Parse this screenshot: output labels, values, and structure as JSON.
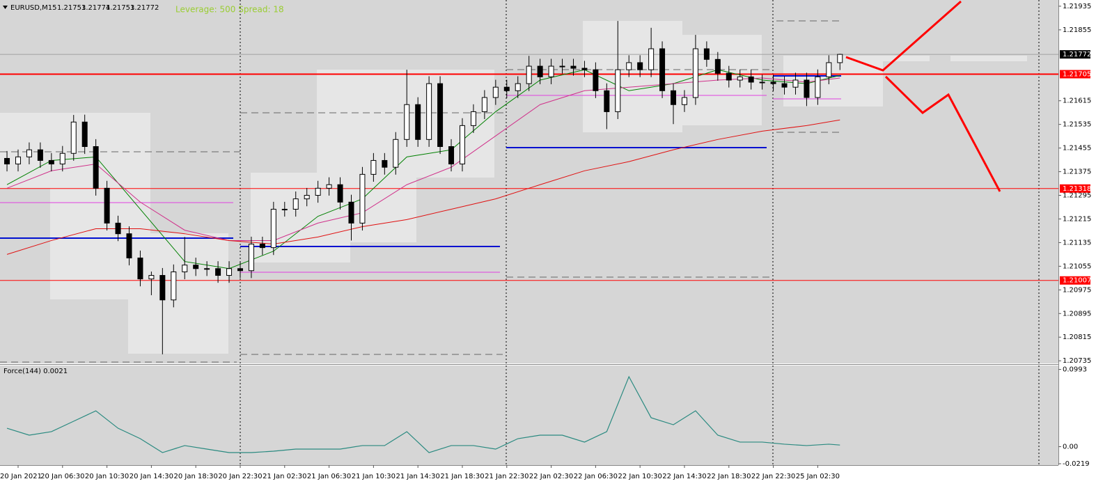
{
  "chart_data": [
    {
      "type": "candlestick",
      "title": "EURUSD,M15",
      "ohlc_header": [
        1.21753,
        1.21774,
        1.21753,
        1.21772
      ],
      "annotation": "Leverage: 500 Spread: 18",
      "xlim": [
        -0.63,
        94.67
      ],
      "ylim": [
        1.20726,
        1.21956
      ],
      "yticks": [
        1.21935,
        1.21855,
        1.21615,
        1.21535,
        1.21455,
        1.21375,
        1.21295,
        1.21215,
        1.21135,
        1.21055,
        1.20975,
        1.20895,
        1.20815,
        1.20735
      ],
      "open": [
        1.2142,
        1.21401,
        1.21425,
        1.21449,
        1.21413,
        1.21401,
        1.21437,
        1.21543,
        1.2146,
        1.21319,
        1.21201,
        1.21165,
        1.21083,
        1.21012,
        1.21024,
        1.20941,
        1.21036,
        1.21059,
        1.21047,
        1.21047,
        1.21024,
        1.21047,
        1.2104,
        1.2113,
        1.21118,
        1.21248,
        1.21248,
        1.21283,
        1.21295,
        1.21319,
        1.21331,
        1.21272,
        1.21201,
        1.21366,
        1.21413,
        1.2139,
        1.21484,
        1.21602,
        1.21484,
        1.21673,
        1.2146,
        1.21401,
        1.21531,
        1.21578,
        1.21626,
        1.21661,
        1.21649,
        1.21673,
        1.21732,
        1.21696,
        1.21732,
        1.21732,
        1.21725,
        1.2172,
        1.21649,
        1.21578,
        1.2172,
        1.21744,
        1.2172,
        1.21791,
        1.21649,
        1.21602,
        1.21626,
        1.21791,
        1.21755,
        1.21708,
        1.21685,
        1.21696,
        1.21678,
        1.21678,
        1.21673,
        1.21661,
        1.21685,
        1.21626,
        1.21696,
        1.21744
      ],
      "high": [
        1.21445,
        1.2145,
        1.21474,
        1.21474,
        1.21438,
        1.21462,
        1.21567,
        1.21568,
        1.21485,
        1.21344,
        1.21226,
        1.2119,
        1.21108,
        1.21037,
        1.21049,
        1.21061,
        1.21154,
        1.21084,
        1.21072,
        1.21072,
        1.21072,
        1.21072,
        1.21155,
        1.21155,
        1.21273,
        1.21273,
        1.21308,
        1.2132,
        1.21344,
        1.21356,
        1.21356,
        1.21297,
        1.21391,
        1.21438,
        1.21438,
        1.21509,
        1.2172,
        1.21627,
        1.21698,
        1.21698,
        1.21485,
        1.21556,
        1.21603,
        1.21651,
        1.21686,
        1.21686,
        1.21698,
        1.21767,
        1.21757,
        1.21757,
        1.21757,
        1.21757,
        1.2175,
        1.21745,
        1.21674,
        1.21885,
        1.21769,
        1.21769,
        1.21862,
        1.21816,
        1.21674,
        1.21651,
        1.21838,
        1.21816,
        1.2178,
        1.21733,
        1.21721,
        1.21721,
        1.21703,
        1.21703,
        1.21698,
        1.2171,
        1.2171,
        1.21721,
        1.21769,
        1.21774
      ],
      "low": [
        1.21376,
        1.21376,
        1.214,
        1.21388,
        1.21376,
        1.21376,
        1.21412,
        1.21435,
        1.21294,
        1.21176,
        1.2114,
        1.21058,
        1.20987,
        1.20957,
        1.20757,
        1.20916,
        1.21011,
        1.21022,
        1.21022,
        1.20999,
        1.20999,
        1.21015,
        1.21015,
        1.21093,
        1.21093,
        1.21223,
        1.21223,
        1.21258,
        1.2127,
        1.21294,
        1.21247,
        1.21142,
        1.21176,
        1.21341,
        1.21365,
        1.21365,
        1.21459,
        1.21459,
        1.21459,
        1.21435,
        1.21376,
        1.21376,
        1.21506,
        1.21553,
        1.21601,
        1.21624,
        1.21624,
        1.21648,
        1.21671,
        1.21671,
        1.21707,
        1.217,
        1.21695,
        1.21624,
        1.21519,
        1.21553,
        1.21695,
        1.21695,
        1.21695,
        1.21624,
        1.21536,
        1.21577,
        1.21601,
        1.2173,
        1.21683,
        1.2166,
        1.2166,
        1.21653,
        1.21653,
        1.21648,
        1.21636,
        1.21636,
        1.21597,
        1.21601,
        1.21671,
        1.21719
      ],
      "close": [
        1.21401,
        1.21425,
        1.21449,
        1.21413,
        1.21401,
        1.21437,
        1.21543,
        1.2146,
        1.21319,
        1.21201,
        1.21165,
        1.21083,
        1.21012,
        1.21024,
        1.20941,
        1.21036,
        1.21059,
        1.21047,
        1.21047,
        1.21024,
        1.21047,
        1.2104,
        1.2113,
        1.21118,
        1.21248,
        1.21248,
        1.21283,
        1.21295,
        1.21319,
        1.21331,
        1.21272,
        1.21201,
        1.21366,
        1.21413,
        1.2139,
        1.21484,
        1.21602,
        1.21484,
        1.21673,
        1.2146,
        1.21401,
        1.21531,
        1.21578,
        1.21626,
        1.21661,
        1.21649,
        1.21673,
        1.21732,
        1.21696,
        1.21732,
        1.21732,
        1.21725,
        1.2172,
        1.21649,
        1.21578,
        1.2172,
        1.21744,
        1.2172,
        1.21791,
        1.21649,
        1.21602,
        1.21626,
        1.21791,
        1.21755,
        1.21708,
        1.21685,
        1.21696,
        1.21678,
        1.21678,
        1.21673,
        1.21661,
        1.21685,
        1.21626,
        1.21696,
        1.21744,
        1.21772
      ],
      "overlay_x": [
        0,
        4,
        8,
        12,
        16,
        20,
        24,
        28,
        32,
        36,
        40,
        44,
        48,
        52,
        56,
        60,
        64,
        68,
        72,
        75
      ],
      "overlays": [
        {
          "color": "#008000",
          "values": [
            1.21331,
            1.21413,
            1.21425,
            1.21248,
            1.21071,
            1.21047,
            1.21106,
            1.21224,
            1.21283,
            1.21425,
            1.21449,
            1.21578,
            1.21685,
            1.2172,
            1.21649,
            1.21673,
            1.2172,
            1.21685,
            1.21673,
            1.21701
          ]
        },
        {
          "color": "#d0308a",
          "values": [
            1.21319,
            1.21378,
            1.21401,
            1.21272,
            1.21177,
            1.21142,
            1.21142,
            1.21201,
            1.21236,
            1.21331,
            1.2139,
            1.21496,
            1.21602,
            1.21649,
            1.21661,
            1.21673,
            1.21685,
            1.21692,
            1.21678,
            1.21692
          ]
        },
        {
          "color": "#e01010",
          "values": [
            1.21095,
            1.21142,
            1.21182,
            1.21182,
            1.21165,
            1.21142,
            1.2113,
            1.21154,
            1.21189,
            1.21213,
            1.21248,
            1.21283,
            1.21331,
            1.21378,
            1.21409,
            1.21449,
            1.21484,
            1.21512,
            1.21531,
            1.2155
          ]
        }
      ],
      "hlines": [
        {
          "value": 1.21705,
          "color": "#ff0000"
        },
        {
          "value": 1.21318,
          "color": "#ff0000"
        },
        {
          "value": 1.21007,
          "color": "#ff0000"
        }
      ],
      "bid": {
        "value": 1.21772,
        "color": "#a0a0a0"
      }
    },
    {
      "type": "line",
      "title": "Force(144) 0.0021",
      "color": "#2a8a80",
      "xlim": [
        -0.63,
        94.67
      ],
      "ylim": [
        -0.0237,
        0.1052
      ],
      "yticks": [
        0.0993,
        {
          "value": 0,
          "label": "0.00"
        },
        -0.0219
      ],
      "x": [
        0,
        2,
        4,
        6,
        8,
        10,
        12,
        14,
        16,
        18,
        20,
        22,
        24,
        26,
        28,
        30,
        32,
        34,
        36,
        38,
        40,
        42,
        44,
        46,
        48,
        50,
        52,
        54,
        56,
        58,
        60,
        62,
        64,
        66,
        68,
        70,
        72,
        74,
        75
      ],
      "values": [
        0.0237,
        0.0148,
        0.0193,
        0.0327,
        0.0461,
        0.0237,
        0.0103,
        -0.0076,
        0.0014,
        -0.0031,
        -0.0076,
        -0.0076,
        -0.0058,
        -0.0031,
        -0.0031,
        -0.0031,
        0.0014,
        0.0014,
        0.0193,
        -0.0076,
        0.0014,
        0.0014,
        -0.0031,
        0.0103,
        0.0148,
        0.0148,
        0.0059,
        0.0193,
        0.09,
        0.0372,
        0.0282,
        0.0461,
        0.0148,
        0.0059,
        0.0059,
        0.0032,
        0.0014,
        0.0032,
        0.0021
      ],
      "xticks": [
        {
          "value": 1,
          "label": "20 Jan 2021"
        },
        {
          "value": 5,
          "label": "20 Jan 06:30"
        },
        {
          "value": 9,
          "label": "20 Jan 10:30"
        },
        {
          "value": 13,
          "label": "20 Jan 14:30"
        },
        {
          "value": 17,
          "label": "20 Jan 18:30"
        },
        {
          "value": 21,
          "label": "20 Jan 22:30"
        },
        {
          "value": 25,
          "label": "21 Jan 02:30"
        },
        {
          "value": 29,
          "label": "21 Jan 06:30"
        },
        {
          "value": 33,
          "label": "21 Jan 10:30"
        },
        {
          "value": 37,
          "label": "21 Jan 14:30"
        },
        {
          "value": 41,
          "label": "21 Jan 18:30"
        },
        {
          "value": 45,
          "label": "21 Jan 22:30"
        },
        {
          "value": 49,
          "label": "22 Jan 02:30"
        },
        {
          "value": 53,
          "label": "22 Jan 06:30"
        },
        {
          "value": 57,
          "label": "22 Jan 10:30"
        },
        {
          "value": 61,
          "label": "22 Jan 14:30"
        },
        {
          "value": 65,
          "label": "22 Jan 18:30"
        },
        {
          "value": 69,
          "label": "22 Jan 22:30"
        },
        {
          "value": 73,
          "label": "25 Jan 02:30"
        }
      ]
    }
  ]
}
